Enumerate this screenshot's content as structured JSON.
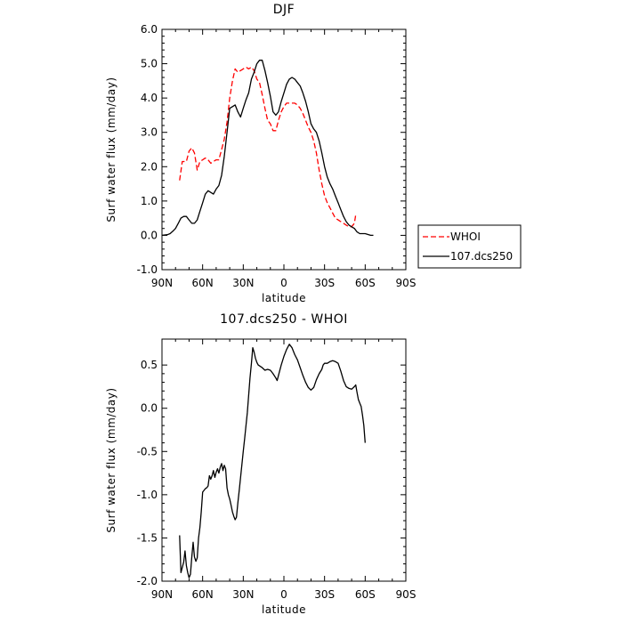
{
  "chart_data": [
    {
      "type": "line",
      "title": "DJF",
      "xlabel": "latitude",
      "ylabel": "Surf water flux (mm/day)",
      "xlim": [
        90,
        -90
      ],
      "ylim": [
        -1.0,
        6.0
      ],
      "x_ticks": [
        90,
        60,
        30,
        0,
        -30,
        -60,
        -90
      ],
      "x_tick_labels": [
        "90N",
        "60N",
        "30N",
        "0",
        "30S",
        "60S",
        "90S"
      ],
      "y_ticks": [
        -1.0,
        0.0,
        1.0,
        2.0,
        3.0,
        4.0,
        5.0,
        6.0
      ],
      "y_tick_labels": [
        "-1.0",
        "0.0",
        "1.0",
        "2.0",
        "3.0",
        "4.0",
        "5.0",
        "6.0"
      ],
      "legend_position": "right-bottom outside",
      "series": [
        {
          "name": "WHOI",
          "color": "#ff0000",
          "dash": "dashed",
          "points": [
            [
              77,
              1.6
            ],
            [
              75,
              2.15
            ],
            [
              72,
              2.15
            ],
            [
              70,
              2.45
            ],
            [
              68,
              2.55
            ],
            [
              66,
              2.4
            ],
            [
              64,
              1.9
            ],
            [
              62,
              2.15
            ],
            [
              60,
              2.2
            ],
            [
              58,
              2.25
            ],
            [
              56,
              2.2
            ],
            [
              54,
              2.1
            ],
            [
              52,
              2.15
            ],
            [
              50,
              2.2
            ],
            [
              48,
              2.2
            ],
            [
              46,
              2.5
            ],
            [
              44,
              2.8
            ],
            [
              42,
              3.3
            ],
            [
              40,
              4.0
            ],
            [
              38,
              4.5
            ],
            [
              36,
              4.85
            ],
            [
              34,
              4.75
            ],
            [
              32,
              4.8
            ],
            [
              30,
              4.85
            ],
            [
              28,
              4.9
            ],
            [
              26,
              4.85
            ],
            [
              24,
              4.9
            ],
            [
              22,
              4.8
            ],
            [
              20,
              4.55
            ],
            [
              18,
              4.45
            ],
            [
              16,
              4.1
            ],
            [
              14,
              3.7
            ],
            [
              12,
              3.35
            ],
            [
              10,
              3.25
            ],
            [
              8,
              3.05
            ],
            [
              6,
              3.05
            ],
            [
              4,
              3.35
            ],
            [
              2,
              3.6
            ],
            [
              0,
              3.75
            ],
            [
              -2,
              3.85
            ],
            [
              -4,
              3.85
            ],
            [
              -6,
              3.85
            ],
            [
              -8,
              3.85
            ],
            [
              -10,
              3.8
            ],
            [
              -12,
              3.7
            ],
            [
              -14,
              3.55
            ],
            [
              -16,
              3.35
            ],
            [
              -18,
              3.15
            ],
            [
              -20,
              3.0
            ],
            [
              -22,
              2.75
            ],
            [
              -24,
              2.4
            ],
            [
              -26,
              1.9
            ],
            [
              -28,
              1.5
            ],
            [
              -30,
              1.15
            ],
            [
              -32,
              0.95
            ],
            [
              -34,
              0.8
            ],
            [
              -36,
              0.65
            ],
            [
              -38,
              0.5
            ],
            [
              -40,
              0.45
            ],
            [
              -42,
              0.4
            ],
            [
              -44,
              0.35
            ],
            [
              -46,
              0.3
            ],
            [
              -48,
              0.25
            ],
            [
              -50,
              0.25
            ],
            [
              -52,
              0.35
            ],
            [
              -53,
              0.6
            ]
          ]
        },
        {
          "name": "107.dcs250",
          "color": "#000000",
          "dash": "solid",
          "points": [
            [
              90,
              0.0
            ],
            [
              86,
              0.02
            ],
            [
              84,
              0.05
            ],
            [
              82,
              0.12
            ],
            [
              80,
              0.2
            ],
            [
              78,
              0.35
            ],
            [
              76,
              0.5
            ],
            [
              74,
              0.55
            ],
            [
              72,
              0.55
            ],
            [
              70,
              0.45
            ],
            [
              68,
              0.35
            ],
            [
              66,
              0.35
            ],
            [
              64,
              0.45
            ],
            [
              62,
              0.7
            ],
            [
              60,
              0.95
            ],
            [
              58,
              1.2
            ],
            [
              56,
              1.3
            ],
            [
              54,
              1.25
            ],
            [
              52,
              1.2
            ],
            [
              50,
              1.35
            ],
            [
              48,
              1.45
            ],
            [
              46,
              1.75
            ],
            [
              44,
              2.3
            ],
            [
              42,
              3.0
            ],
            [
              40,
              3.7
            ],
            [
              38,
              3.75
            ],
            [
              36,
              3.8
            ],
            [
              34,
              3.6
            ],
            [
              32,
              3.45
            ],
            [
              30,
              3.7
            ],
            [
              28,
              3.95
            ],
            [
              26,
              4.15
            ],
            [
              24,
              4.55
            ],
            [
              22,
              4.75
            ],
            [
              20,
              5.0
            ],
            [
              18,
              5.1
            ],
            [
              16,
              5.1
            ],
            [
              14,
              4.8
            ],
            [
              12,
              4.45
            ],
            [
              10,
              4.05
            ],
            [
              8,
              3.6
            ],
            [
              6,
              3.5
            ],
            [
              4,
              3.6
            ],
            [
              2,
              3.9
            ],
            [
              0,
              4.15
            ],
            [
              -2,
              4.4
            ],
            [
              -4,
              4.55
            ],
            [
              -6,
              4.6
            ],
            [
              -8,
              4.55
            ],
            [
              -10,
              4.45
            ],
            [
              -12,
              4.35
            ],
            [
              -14,
              4.15
            ],
            [
              -16,
              3.9
            ],
            [
              -18,
              3.6
            ],
            [
              -20,
              3.25
            ],
            [
              -22,
              3.1
            ],
            [
              -24,
              3.0
            ],
            [
              -26,
              2.75
            ],
            [
              -28,
              2.4
            ],
            [
              -30,
              2.0
            ],
            [
              -32,
              1.7
            ],
            [
              -34,
              1.5
            ],
            [
              -36,
              1.35
            ],
            [
              -38,
              1.15
            ],
            [
              -40,
              0.95
            ],
            [
              -42,
              0.75
            ],
            [
              -44,
              0.55
            ],
            [
              -46,
              0.4
            ],
            [
              -48,
              0.3
            ],
            [
              -50,
              0.25
            ],
            [
              -52,
              0.2
            ],
            [
              -54,
              0.1
            ],
            [
              -56,
              0.05
            ],
            [
              -60,
              0.05
            ],
            [
              -64,
              0.0
            ],
            [
              -66,
              0.0
            ]
          ]
        }
      ]
    },
    {
      "type": "line",
      "title": "107.dcs250 - WHOI",
      "xlabel": "latitude",
      "ylabel": "Surf water flux (mm/day)",
      "xlim": [
        90,
        -90
      ],
      "ylim": [
        -2.0,
        0.8
      ],
      "x_ticks": [
        90,
        60,
        30,
        0,
        -30,
        -60,
        -90
      ],
      "x_tick_labels": [
        "90N",
        "60N",
        "30N",
        "0",
        "30S",
        "60S",
        "90S"
      ],
      "y_ticks": [
        -2.0,
        -1.5,
        -1.0,
        -0.5,
        0.0,
        0.5
      ],
      "y_tick_labels": [
        "-2.0",
        "-1.5",
        "-1.0",
        "-0.5",
        "0.0",
        "0.5"
      ],
      "series": [
        {
          "color": "#000000",
          "dash": "solid",
          "points": [
            [
              77,
              -1.47
            ],
            [
              76,
              -1.9
            ],
            [
              74,
              -1.78
            ],
            [
              73,
              -1.65
            ],
            [
              72,
              -1.82
            ],
            [
              71,
              -1.9
            ],
            [
              70,
              -1.96
            ],
            [
              69,
              -1.92
            ],
            [
              68,
              -1.72
            ],
            [
              67,
              -1.55
            ],
            [
              66,
              -1.72
            ],
            [
              65,
              -1.77
            ],
            [
              64,
              -1.73
            ],
            [
              63,
              -1.5
            ],
            [
              62,
              -1.38
            ],
            [
              61,
              -1.2
            ],
            [
              60,
              -0.97
            ],
            [
              59,
              -0.95
            ],
            [
              58,
              -0.93
            ],
            [
              57,
              -0.92
            ],
            [
              56,
              -0.9
            ],
            [
              55,
              -0.78
            ],
            [
              54,
              -0.82
            ],
            [
              53,
              -0.78
            ],
            [
              52,
              -0.72
            ],
            [
              51,
              -0.8
            ],
            [
              50,
              -0.74
            ],
            [
              49,
              -0.7
            ],
            [
              48,
              -0.75
            ],
            [
              47,
              -0.68
            ],
            [
              46,
              -0.64
            ],
            [
              45,
              -0.72
            ],
            [
              44,
              -0.66
            ],
            [
              43,
              -0.7
            ],
            [
              42,
              -0.92
            ],
            [
              41,
              -1.0
            ],
            [
              40,
              -1.05
            ],
            [
              39,
              -1.12
            ],
            [
              38,
              -1.2
            ],
            [
              37,
              -1.25
            ],
            [
              36,
              -1.29
            ],
            [
              35,
              -1.26
            ],
            [
              34,
              -1.1
            ],
            [
              33,
              -0.95
            ],
            [
              32,
              -0.8
            ],
            [
              31,
              -0.65
            ],
            [
              30,
              -0.5
            ],
            [
              29,
              -0.35
            ],
            [
              28,
              -0.2
            ],
            [
              27,
              -0.05
            ],
            [
              26,
              0.15
            ],
            [
              25,
              0.35
            ],
            [
              24,
              0.52
            ],
            [
              23,
              0.7
            ],
            [
              22,
              0.65
            ],
            [
              21,
              0.58
            ],
            [
              20,
              0.53
            ],
            [
              19,
              0.5
            ],
            [
              18,
              0.49
            ],
            [
              16,
              0.47
            ],
            [
              14,
              0.44
            ],
            [
              12,
              0.45
            ],
            [
              10,
              0.44
            ],
            [
              8,
              0.4
            ],
            [
              6,
              0.35
            ],
            [
              5,
              0.32
            ],
            [
              4,
              0.38
            ],
            [
              2,
              0.5
            ],
            [
              0,
              0.6
            ],
            [
              -2,
              0.68
            ],
            [
              -4,
              0.74
            ],
            [
              -6,
              0.7
            ],
            [
              -8,
              0.62
            ],
            [
              -10,
              0.56
            ],
            [
              -12,
              0.47
            ],
            [
              -14,
              0.38
            ],
            [
              -16,
              0.3
            ],
            [
              -18,
              0.24
            ],
            [
              -20,
              0.21
            ],
            [
              -22,
              0.24
            ],
            [
              -24,
              0.33
            ],
            [
              -26,
              0.4
            ],
            [
              -28,
              0.45
            ],
            [
              -29,
              0.5
            ],
            [
              -30,
              0.52
            ],
            [
              -32,
              0.52
            ],
            [
              -34,
              0.54
            ],
            [
              -36,
              0.55
            ],
            [
              -38,
              0.54
            ],
            [
              -40,
              0.52
            ],
            [
              -42,
              0.43
            ],
            [
              -44,
              0.32
            ],
            [
              -46,
              0.25
            ],
            [
              -48,
              0.23
            ],
            [
              -50,
              0.22
            ],
            [
              -52,
              0.25
            ],
            [
              -53,
              0.27
            ],
            [
              -54,
              0.18
            ],
            [
              -55,
              0.1
            ],
            [
              -56,
              0.06
            ],
            [
              -57,
              0.02
            ],
            [
              -58,
              -0.08
            ],
            [
              -59,
              -0.2
            ],
            [
              -60,
              -0.4
            ]
          ]
        }
      ]
    }
  ]
}
